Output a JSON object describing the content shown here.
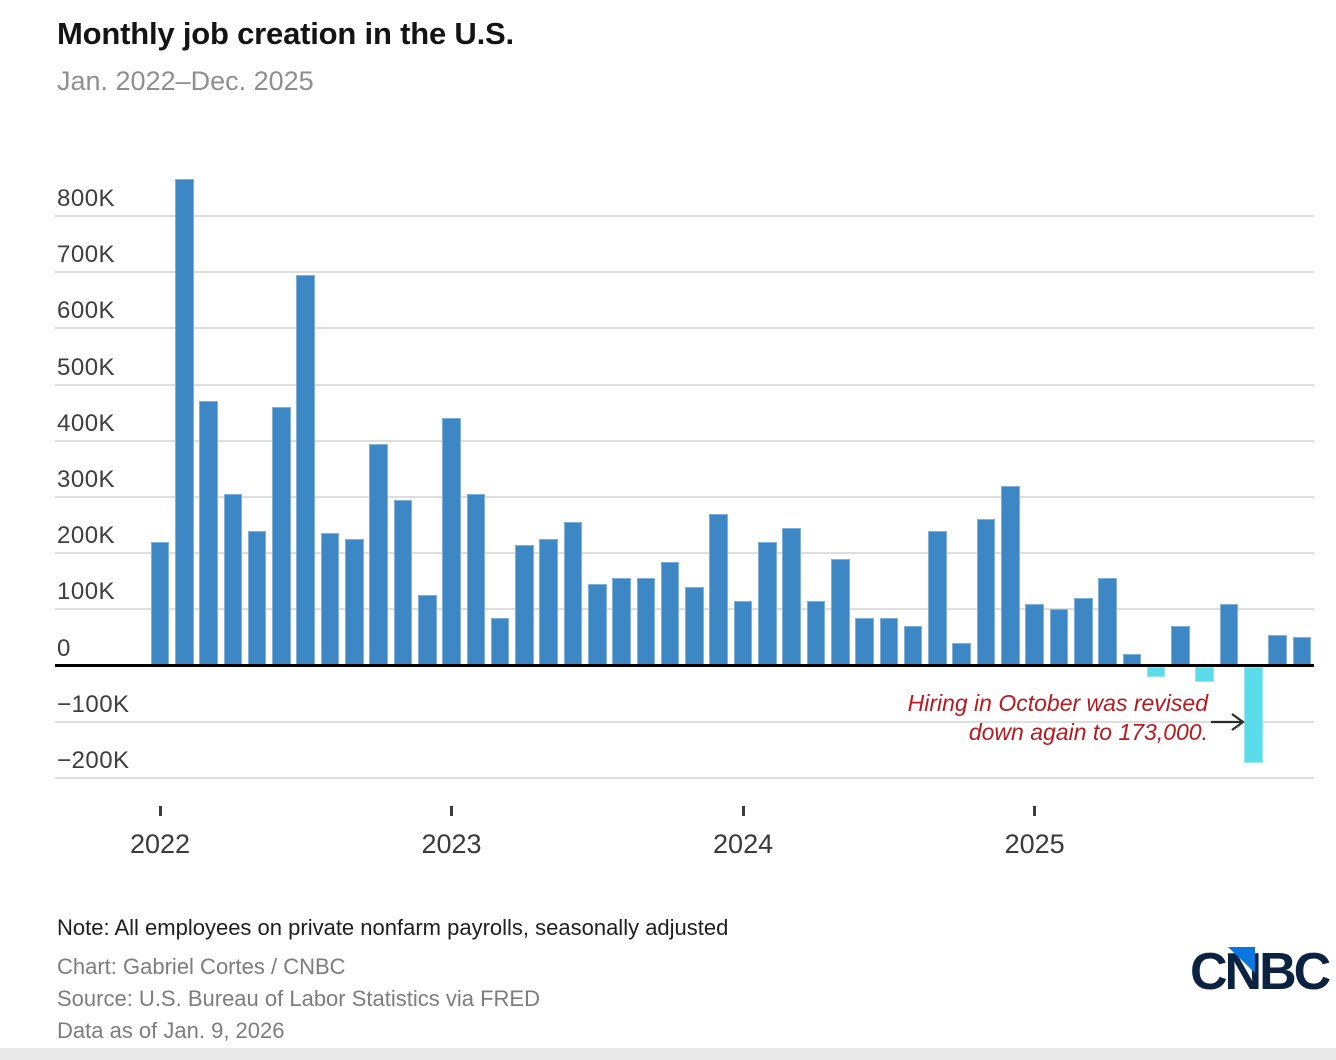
{
  "header": {
    "title": "Monthly job creation in the U.S.",
    "subtitle": "Jan. 2022–Dec. 2025"
  },
  "annotation": {
    "line1": "Hiring in October was revised",
    "line2": "down again to 173,000."
  },
  "footer": {
    "note": "Note: All employees on private nonfarm payrolls, seasonally adjusted",
    "credit": "Chart: Gabriel Cortes / CNBC",
    "source": "Source: U.S. Bureau of Labor Statistics via FRED",
    "as_of": "Data as of Jan. 9, 2026"
  },
  "brand": {
    "logo_text": "CNBC"
  },
  "colors": {
    "bar_blue": "#3e87c5",
    "bar_cyan": "#5bdde9",
    "annotation_red": "#b7191e",
    "logo_navy": "#0b2340",
    "logo_blue": "#0b76df",
    "gridline": "#dedede",
    "baseline": "#000000"
  },
  "chart_data": {
    "type": "bar",
    "title": "Monthly job creation in the U.S.",
    "subtitle": "Jan. 2022–Dec. 2025",
    "unit": "thousands of jobs (K)",
    "grid": "horizontal",
    "legend": "none",
    "ylim": [
      -250,
      880
    ],
    "x": [
      "Jan 2022",
      "Feb 2022",
      "Mar 2022",
      "Apr 2022",
      "May 2022",
      "Jun 2022",
      "Jul 2022",
      "Aug 2022",
      "Sep 2022",
      "Oct 2022",
      "Nov 2022",
      "Dec 2022",
      "Jan 2023",
      "Feb 2023",
      "Mar 2023",
      "Apr 2023",
      "May 2023",
      "Jun 2023",
      "Jul 2023",
      "Aug 2023",
      "Sep 2023",
      "Oct 2023",
      "Nov 2023",
      "Dec 2023",
      "Jan 2024",
      "Feb 2024",
      "Mar 2024",
      "Apr 2024",
      "May 2024",
      "Jun 2024",
      "Jul 2024",
      "Aug 2024",
      "Sep 2024",
      "Oct 2024",
      "Nov 2024",
      "Dec 2024",
      "Jan 2025",
      "Feb 2025",
      "Mar 2025",
      "Apr 2025",
      "May 2025",
      "Jun 2025",
      "Jul 2025",
      "Aug 2025",
      "Sep 2025",
      "Oct 2025",
      "Nov 2025",
      "Dec 2025"
    ],
    "series": [
      {
        "name": "Monthly change in private nonfarm payrolls (thousands)",
        "values": [
          220,
          865,
          470,
          305,
          240,
          460,
          695,
          235,
          225,
          395,
          295,
          125,
          440,
          305,
          85,
          215,
          225,
          255,
          145,
          155,
          155,
          185,
          140,
          270,
          115,
          220,
          245,
          115,
          190,
          85,
          85,
          70,
          240,
          40,
          260,
          320,
          110,
          100,
          120,
          155,
          20,
          -20,
          70,
          -30,
          110,
          -173,
          55,
          50
        ]
      }
    ],
    "y_ticks": [
      {
        "value": 800,
        "label": "800K"
      },
      {
        "value": 700,
        "label": "700K"
      },
      {
        "value": 600,
        "label": "600K"
      },
      {
        "value": 500,
        "label": "500K"
      },
      {
        "value": 400,
        "label": "400K"
      },
      {
        "value": 300,
        "label": "300K"
      },
      {
        "value": 200,
        "label": "200K"
      },
      {
        "value": 100,
        "label": "100K"
      },
      {
        "value": 0,
        "label": "0"
      },
      {
        "value": -100,
        "label": "−100K"
      },
      {
        "value": -200,
        "label": "−200K"
      }
    ],
    "x_ticks": [
      "2022",
      "2023",
      "2024",
      "2025"
    ],
    "highlight": {
      "color_rule": "negative months drawn in cyan",
      "cyan_months": [
        "Jun 2025",
        "Aug 2025",
        "Oct 2025"
      ]
    },
    "annotation": {
      "text": "Hiring in October was revised down again to 173,000.",
      "target_month": "Oct 2025",
      "target_value": -173
    }
  }
}
